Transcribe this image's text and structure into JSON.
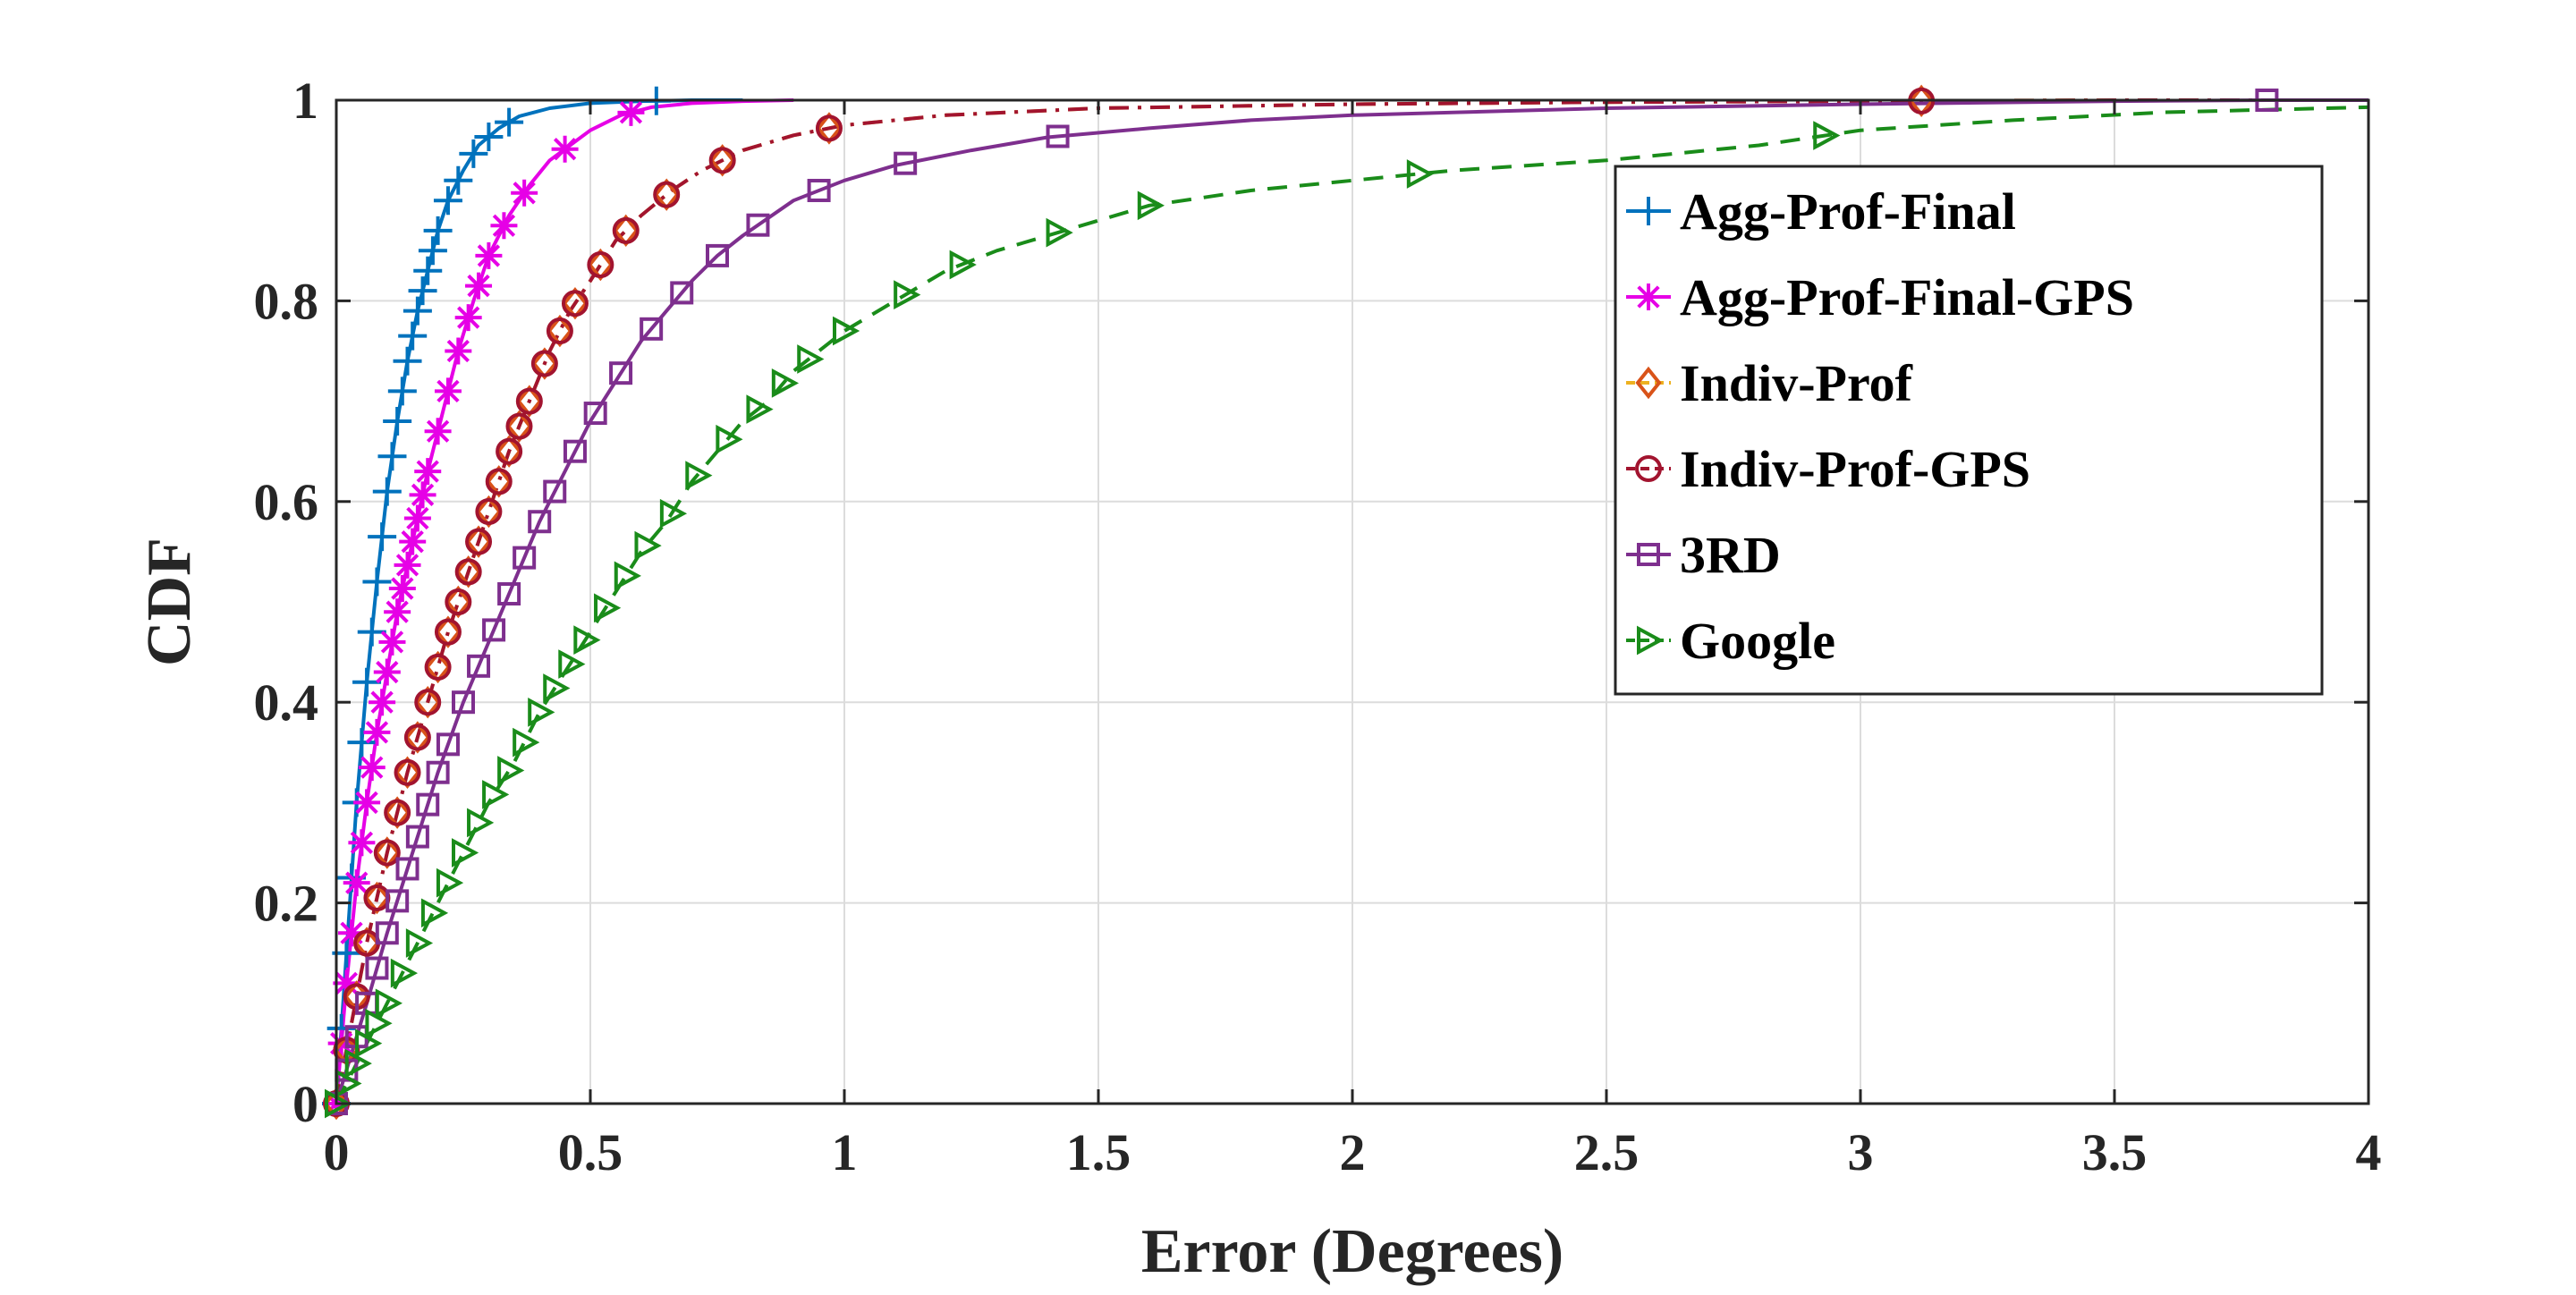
{
  "chart_data": {
    "type": "line",
    "title": "",
    "xlabel": "Error (Degrees)",
    "ylabel": "CDF",
    "xlim": [
      0,
      4
    ],
    "ylim": [
      0,
      1
    ],
    "xticks": [
      "0",
      "0.5",
      "1",
      "1.5",
      "2",
      "2.5",
      "3",
      "3.5",
      "4"
    ],
    "yticks": [
      "0",
      "0.2",
      "0.4",
      "0.6",
      "0.8",
      "1"
    ],
    "grid": true,
    "legend_position": "top-right",
    "series": [
      {
        "name": "Agg-Prof-Final",
        "color": "#0072BD",
        "marker": "plus",
        "dash": "solid",
        "x": [
          0,
          0.02,
          0.04,
          0.06,
          0.08,
          0.1,
          0.12,
          0.14,
          0.16,
          0.18,
          0.2,
          0.22,
          0.25,
          0.28,
          0.32,
          0.36,
          0.42,
          0.5,
          0.6,
          0.7,
          0.8
        ],
        "y": [
          0,
          0.15,
          0.3,
          0.42,
          0.52,
          0.61,
          0.68,
          0.74,
          0.79,
          0.83,
          0.87,
          0.9,
          0.93,
          0.955,
          0.972,
          0.984,
          0.992,
          0.997,
          0.999,
          1,
          1
        ],
        "marker_x": [
          0,
          0.01,
          0.02,
          0.03,
          0.04,
          0.05,
          0.06,
          0.07,
          0.08,
          0.09,
          0.1,
          0.11,
          0.12,
          0.13,
          0.14,
          0.15,
          0.16,
          0.17,
          0.18,
          0.19,
          0.2,
          0.22,
          0.24,
          0.27,
          0.3,
          0.34,
          0.63
        ]
      },
      {
        "name": "Agg-Prof-Final-GPS",
        "color": "#E600E6",
        "marker": "asterisk",
        "dash": "solid",
        "x": [
          0,
          0.02,
          0.04,
          0.06,
          0.08,
          0.1,
          0.12,
          0.15,
          0.18,
          0.21,
          0.24,
          0.27,
          0.3,
          0.34,
          0.38,
          0.42,
          0.46,
          0.5,
          0.56,
          0.62,
          0.7,
          0.8,
          0.9
        ],
        "y": [
          0,
          0.12,
          0.22,
          0.3,
          0.37,
          0.43,
          0.49,
          0.56,
          0.63,
          0.69,
          0.75,
          0.8,
          0.845,
          0.885,
          0.915,
          0.94,
          0.955,
          0.97,
          0.985,
          0.993,
          0.997,
          0.999,
          1
        ],
        "marker_x": [
          0,
          0.01,
          0.02,
          0.03,
          0.04,
          0.05,
          0.06,
          0.07,
          0.08,
          0.09,
          0.1,
          0.11,
          0.12,
          0.13,
          0.14,
          0.15,
          0.16,
          0.17,
          0.18,
          0.2,
          0.22,
          0.24,
          0.26,
          0.28,
          0.3,
          0.33,
          0.37,
          0.45,
          0.58
        ]
      },
      {
        "name": "Indiv-Prof",
        "color": "#EDB120",
        "marker_color": "#D95319",
        "marker": "diamond",
        "dash": "dashdot",
        "x": [
          0,
          0.03,
          0.06,
          0.1,
          0.14,
          0.18,
          0.22,
          0.26,
          0.3,
          0.34,
          0.38,
          0.42,
          0.46,
          0.5,
          0.55,
          0.6,
          0.66,
          0.72,
          0.8,
          0.9,
          1.0,
          1.2,
          1.5,
          2.0,
          2.5,
          3.0,
          3.5,
          4.0
        ],
        "y": [
          0,
          0.08,
          0.16,
          0.25,
          0.33,
          0.4,
          0.47,
          0.53,
          0.59,
          0.65,
          0.7,
          0.75,
          0.79,
          0.82,
          0.86,
          0.885,
          0.91,
          0.93,
          0.95,
          0.965,
          0.975,
          0.985,
          0.992,
          0.996,
          0.998,
          0.999,
          1,
          1
        ],
        "marker_x": [
          0,
          0.02,
          0.04,
          0.06,
          0.08,
          0.1,
          0.12,
          0.14,
          0.16,
          0.18,
          0.2,
          0.22,
          0.24,
          0.26,
          0.28,
          0.3,
          0.32,
          0.34,
          0.36,
          0.38,
          0.41,
          0.44,
          0.47,
          0.52,
          0.57,
          0.65,
          0.76,
          0.97,
          3.12
        ]
      },
      {
        "name": "Indiv-Prof-GPS",
        "color": "#A2142F",
        "marker": "circle",
        "dash": "dashdot",
        "x": [
          0,
          0.03,
          0.06,
          0.1,
          0.14,
          0.18,
          0.22,
          0.26,
          0.3,
          0.34,
          0.38,
          0.42,
          0.46,
          0.5,
          0.55,
          0.6,
          0.66,
          0.72,
          0.8,
          0.9,
          1.0,
          1.2,
          1.5,
          2.0,
          2.5,
          3.0,
          3.5,
          4.0
        ],
        "y": [
          0,
          0.08,
          0.16,
          0.25,
          0.33,
          0.4,
          0.47,
          0.53,
          0.59,
          0.65,
          0.7,
          0.75,
          0.79,
          0.82,
          0.86,
          0.885,
          0.91,
          0.93,
          0.95,
          0.965,
          0.975,
          0.985,
          0.992,
          0.996,
          0.998,
          0.999,
          1,
          1
        ],
        "marker_x": [
          0,
          0.02,
          0.04,
          0.06,
          0.08,
          0.1,
          0.12,
          0.14,
          0.16,
          0.18,
          0.2,
          0.22,
          0.24,
          0.26,
          0.28,
          0.3,
          0.32,
          0.34,
          0.36,
          0.38,
          0.41,
          0.44,
          0.47,
          0.52,
          0.57,
          0.65,
          0.76,
          0.97,
          3.12
        ]
      },
      {
        "name": "3RD",
        "color": "#7E2F8E",
        "marker": "square",
        "dash": "solid",
        "x": [
          0,
          0.03,
          0.06,
          0.1,
          0.15,
          0.2,
          0.25,
          0.3,
          0.35,
          0.4,
          0.45,
          0.5,
          0.55,
          0.6,
          0.65,
          0.7,
          0.75,
          0.8,
          0.9,
          1.0,
          1.1,
          1.25,
          1.4,
          1.6,
          1.8,
          2.0,
          2.5,
          3.0,
          3.5,
          3.8,
          4.0
        ],
        "y": [
          0,
          0.05,
          0.1,
          0.17,
          0.25,
          0.33,
          0.4,
          0.46,
          0.52,
          0.58,
          0.63,
          0.68,
          0.72,
          0.76,
          0.79,
          0.82,
          0.845,
          0.865,
          0.9,
          0.92,
          0.935,
          0.95,
          0.963,
          0.972,
          0.98,
          0.985,
          0.992,
          0.996,
          0.999,
          1,
          1
        ],
        "marker_x": [
          0,
          0.02,
          0.04,
          0.06,
          0.08,
          0.1,
          0.12,
          0.14,
          0.16,
          0.18,
          0.2,
          0.22,
          0.25,
          0.28,
          0.31,
          0.34,
          0.37,
          0.4,
          0.43,
          0.47,
          0.51,
          0.56,
          0.62,
          0.68,
          0.75,
          0.83,
          0.95,
          1.12,
          1.42,
          3.8
        ]
      },
      {
        "name": "Google",
        "color": "#1A8C1A",
        "marker": "triangle-right",
        "dash": "dashed",
        "x": [
          0,
          0.05,
          0.1,
          0.15,
          0.2,
          0.25,
          0.3,
          0.35,
          0.4,
          0.45,
          0.5,
          0.55,
          0.6,
          0.65,
          0.7,
          0.75,
          0.8,
          0.85,
          0.9,
          0.95,
          1.0,
          1.1,
          1.2,
          1.3,
          1.4,
          1.5,
          1.6,
          1.8,
          2.0,
          2.2,
          2.5,
          2.8,
          3.0,
          3.3,
          3.6,
          4.0
        ],
        "y": [
          0,
          0.05,
          0.1,
          0.15,
          0.2,
          0.25,
          0.3,
          0.34,
          0.39,
          0.43,
          0.47,
          0.51,
          0.55,
          0.58,
          0.62,
          0.65,
          0.68,
          0.7,
          0.73,
          0.75,
          0.77,
          0.8,
          0.83,
          0.85,
          0.865,
          0.88,
          0.895,
          0.91,
          0.92,
          0.93,
          0.94,
          0.955,
          0.97,
          0.98,
          0.988,
          0.993
        ],
        "marker_x": [
          0,
          0.02,
          0.04,
          0.06,
          0.08,
          0.1,
          0.13,
          0.16,
          0.19,
          0.22,
          0.25,
          0.28,
          0.31,
          0.34,
          0.37,
          0.4,
          0.43,
          0.46,
          0.49,
          0.53,
          0.57,
          0.61,
          0.66,
          0.71,
          0.77,
          0.83,
          0.88,
          0.93,
          1.0,
          1.12,
          1.23,
          1.42,
          1.6,
          2.13,
          2.93
        ]
      }
    ]
  }
}
